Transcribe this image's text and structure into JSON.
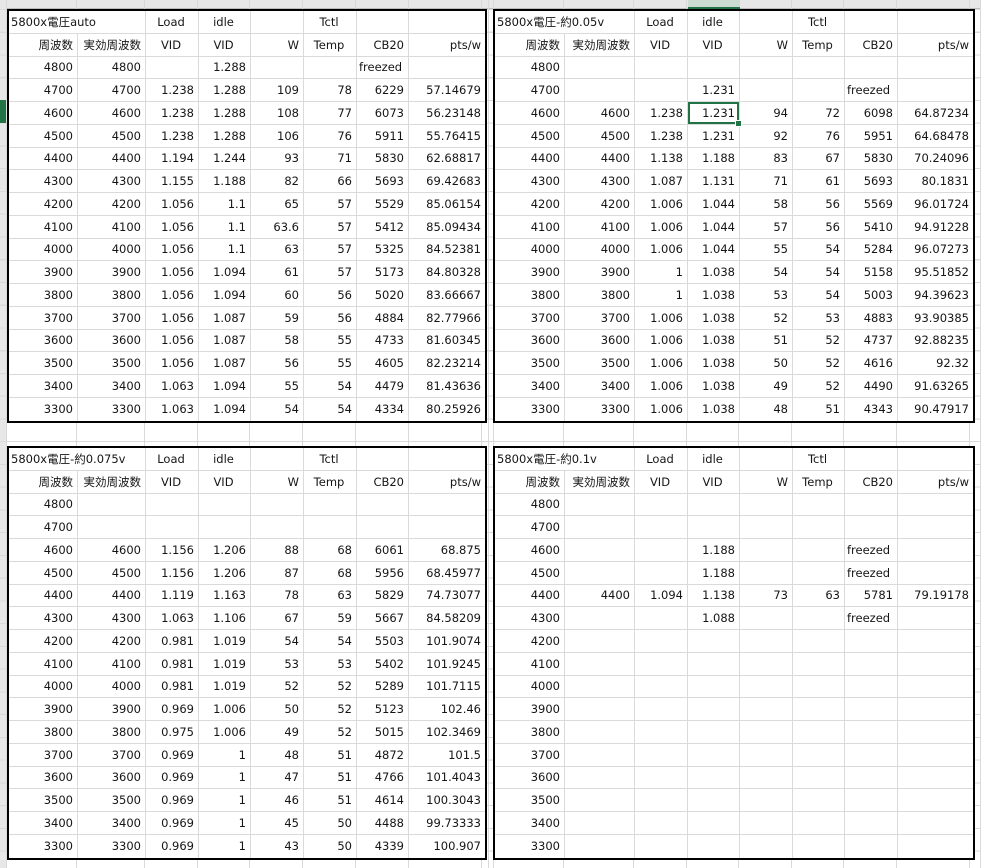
{
  "app": {
    "title": "Ryzen 5800X undervolt benchmark spreadsheet"
  },
  "colors": {
    "accent_green": "#217346",
    "gridline": "#d9d9d9",
    "header_strip": "#e7e7e7",
    "table_border": "#000000"
  },
  "top_labels": [
    "Load",
    "idle",
    "",
    "Tctl",
    "",
    ""
  ],
  "col_headers": [
    "周波数",
    "実効周波数",
    "VID",
    "VID",
    "W",
    "Temp",
    "CB20",
    "pts/w"
  ],
  "selection": {
    "table_index": 1,
    "row_index": 2,
    "col_index": 3,
    "value": "1.231"
  },
  "tables": [
    {
      "title": "5800x電圧auto",
      "rows": [
        [
          "4800",
          "4800",
          "",
          "1.288",
          "",
          "",
          "freezed",
          ""
        ],
        [
          "4700",
          "4700",
          "1.238",
          "1.288",
          "109",
          "78",
          "6229",
          "57.14679"
        ],
        [
          "4600",
          "4600",
          "1.238",
          "1.288",
          "108",
          "77",
          "6073",
          "56.23148"
        ],
        [
          "4500",
          "4500",
          "1.238",
          "1.288",
          "106",
          "76",
          "5911",
          "55.76415"
        ],
        [
          "4400",
          "4400",
          "1.194",
          "1.244",
          "93",
          "71",
          "5830",
          "62.68817"
        ],
        [
          "4300",
          "4300",
          "1.155",
          "1.188",
          "82",
          "66",
          "5693",
          "69.42683"
        ],
        [
          "4200",
          "4200",
          "1.056",
          "1.1",
          "65",
          "57",
          "5529",
          "85.06154"
        ],
        [
          "4100",
          "4100",
          "1.056",
          "1.1",
          "63.6",
          "57",
          "5412",
          "85.09434"
        ],
        [
          "4000",
          "4000",
          "1.056",
          "1.1",
          "63",
          "57",
          "5325",
          "84.52381"
        ],
        [
          "3900",
          "3900",
          "1.056",
          "1.094",
          "61",
          "57",
          "5173",
          "84.80328"
        ],
        [
          "3800",
          "3800",
          "1.056",
          "1.094",
          "60",
          "56",
          "5020",
          "83.66667"
        ],
        [
          "3700",
          "3700",
          "1.056",
          "1.087",
          "59",
          "56",
          "4884",
          "82.77966"
        ],
        [
          "3600",
          "3600",
          "1.056",
          "1.087",
          "58",
          "55",
          "4733",
          "81.60345"
        ],
        [
          "3500",
          "3500",
          "1.056",
          "1.087",
          "56",
          "55",
          "4605",
          "82.23214"
        ],
        [
          "3400",
          "3400",
          "1.063",
          "1.094",
          "55",
          "54",
          "4479",
          "81.43636"
        ],
        [
          "3300",
          "3300",
          "1.063",
          "1.094",
          "54",
          "54",
          "4334",
          "80.25926"
        ]
      ]
    },
    {
      "title": "5800x電圧-約0.05v",
      "rows": [
        [
          "4800",
          "",
          "",
          "",
          "",
          "",
          "",
          ""
        ],
        [
          "4700",
          "",
          "",
          "1.231",
          "",
          "",
          "freezed",
          ""
        ],
        [
          "4600",
          "4600",
          "1.238",
          "1.231",
          "94",
          "72",
          "6098",
          "64.87234"
        ],
        [
          "4500",
          "4500",
          "1.238",
          "1.231",
          "92",
          "76",
          "5951",
          "64.68478"
        ],
        [
          "4400",
          "4400",
          "1.138",
          "1.188",
          "83",
          "67",
          "5830",
          "70.24096"
        ],
        [
          "4300",
          "4300",
          "1.087",
          "1.131",
          "71",
          "61",
          "5693",
          "80.1831"
        ],
        [
          "4200",
          "4200",
          "1.006",
          "1.044",
          "58",
          "56",
          "5569",
          "96.01724"
        ],
        [
          "4100",
          "4100",
          "1.006",
          "1.044",
          "57",
          "56",
          "5410",
          "94.91228"
        ],
        [
          "4000",
          "4000",
          "1.006",
          "1.044",
          "55",
          "54",
          "5284",
          "96.07273"
        ],
        [
          "3900",
          "3900",
          "1",
          "1.038",
          "54",
          "54",
          "5158",
          "95.51852"
        ],
        [
          "3800",
          "3800",
          "1",
          "1.038",
          "53",
          "54",
          "5003",
          "94.39623"
        ],
        [
          "3700",
          "3700",
          "1.006",
          "1.038",
          "52",
          "53",
          "4883",
          "93.90385"
        ],
        [
          "3600",
          "3600",
          "1.006",
          "1.038",
          "51",
          "52",
          "4737",
          "92.88235"
        ],
        [
          "3500",
          "3500",
          "1.006",
          "1.038",
          "50",
          "52",
          "4616",
          "92.32"
        ],
        [
          "3400",
          "3400",
          "1.006",
          "1.038",
          "49",
          "52",
          "4490",
          "91.63265"
        ],
        [
          "3300",
          "3300",
          "1.006",
          "1.038",
          "48",
          "51",
          "4343",
          "90.47917"
        ]
      ]
    },
    {
      "title": "5800x電圧-約0.075v",
      "rows": [
        [
          "4800",
          "",
          "",
          "",
          "",
          "",
          "",
          ""
        ],
        [
          "4700",
          "",
          "",
          "",
          "",
          "",
          "",
          ""
        ],
        [
          "4600",
          "4600",
          "1.156",
          "1.206",
          "88",
          "68",
          "6061",
          "68.875"
        ],
        [
          "4500",
          "4500",
          "1.156",
          "1.206",
          "87",
          "68",
          "5956",
          "68.45977"
        ],
        [
          "4400",
          "4400",
          "1.119",
          "1.163",
          "78",
          "63",
          "5829",
          "74.73077"
        ],
        [
          "4300",
          "4300",
          "1.063",
          "1.106",
          "67",
          "59",
          "5667",
          "84.58209"
        ],
        [
          "4200",
          "4200",
          "0.981",
          "1.019",
          "54",
          "54",
          "5503",
          "101.9074"
        ],
        [
          "4100",
          "4100",
          "0.981",
          "1.019",
          "53",
          "53",
          "5402",
          "101.9245"
        ],
        [
          "4000",
          "4000",
          "0.981",
          "1.019",
          "52",
          "52",
          "5289",
          "101.7115"
        ],
        [
          "3900",
          "3900",
          "0.969",
          "1.006",
          "50",
          "52",
          "5123",
          "102.46"
        ],
        [
          "3800",
          "3800",
          "0.975",
          "1.006",
          "49",
          "52",
          "5015",
          "102.3469"
        ],
        [
          "3700",
          "3700",
          "0.969",
          "1",
          "48",
          "51",
          "4872",
          "101.5"
        ],
        [
          "3600",
          "3600",
          "0.969",
          "1",
          "47",
          "51",
          "4766",
          "101.4043"
        ],
        [
          "3500",
          "3500",
          "0.969",
          "1",
          "46",
          "51",
          "4614",
          "100.3043"
        ],
        [
          "3400",
          "3400",
          "0.969",
          "1",
          "45",
          "50",
          "4488",
          "99.73333"
        ],
        [
          "3300",
          "3300",
          "0.969",
          "1",
          "43",
          "50",
          "4339",
          "100.907"
        ]
      ]
    },
    {
      "title": "5800x電圧-約0.1v",
      "rows": [
        [
          "4800",
          "",
          "",
          "",
          "",
          "",
          "",
          ""
        ],
        [
          "4700",
          "",
          "",
          "",
          "",
          "",
          "",
          ""
        ],
        [
          "4600",
          "",
          "",
          "1.188",
          "",
          "",
          "freezed",
          ""
        ],
        [
          "4500",
          "",
          "",
          "1.188",
          "",
          "",
          "freezed",
          ""
        ],
        [
          "4400",
          "4400",
          "1.094",
          "1.138",
          "73",
          "63",
          "5781",
          "79.19178"
        ],
        [
          "4300",
          "",
          "",
          "1.088",
          "",
          "",
          "freezed",
          ""
        ],
        [
          "4200",
          "",
          "",
          "",
          "",
          "",
          "",
          ""
        ],
        [
          "4100",
          "",
          "",
          "",
          "",
          "",
          "",
          ""
        ],
        [
          "4000",
          "",
          "",
          "",
          "",
          "",
          "",
          ""
        ],
        [
          "3900",
          "",
          "",
          "",
          "",
          "",
          "",
          ""
        ],
        [
          "3800",
          "",
          "",
          "",
          "",
          "",
          "",
          ""
        ],
        [
          "3700",
          "",
          "",
          "",
          "",
          "",
          "",
          ""
        ],
        [
          "3600",
          "",
          "",
          "",
          "",
          "",
          "",
          ""
        ],
        [
          "3500",
          "",
          "",
          "",
          "",
          "",
          "",
          ""
        ],
        [
          "3400",
          "",
          "",
          "",
          "",
          "",
          "",
          ""
        ],
        [
          "3300",
          "",
          "",
          "",
          "",
          "",
          "",
          ""
        ]
      ]
    }
  ]
}
